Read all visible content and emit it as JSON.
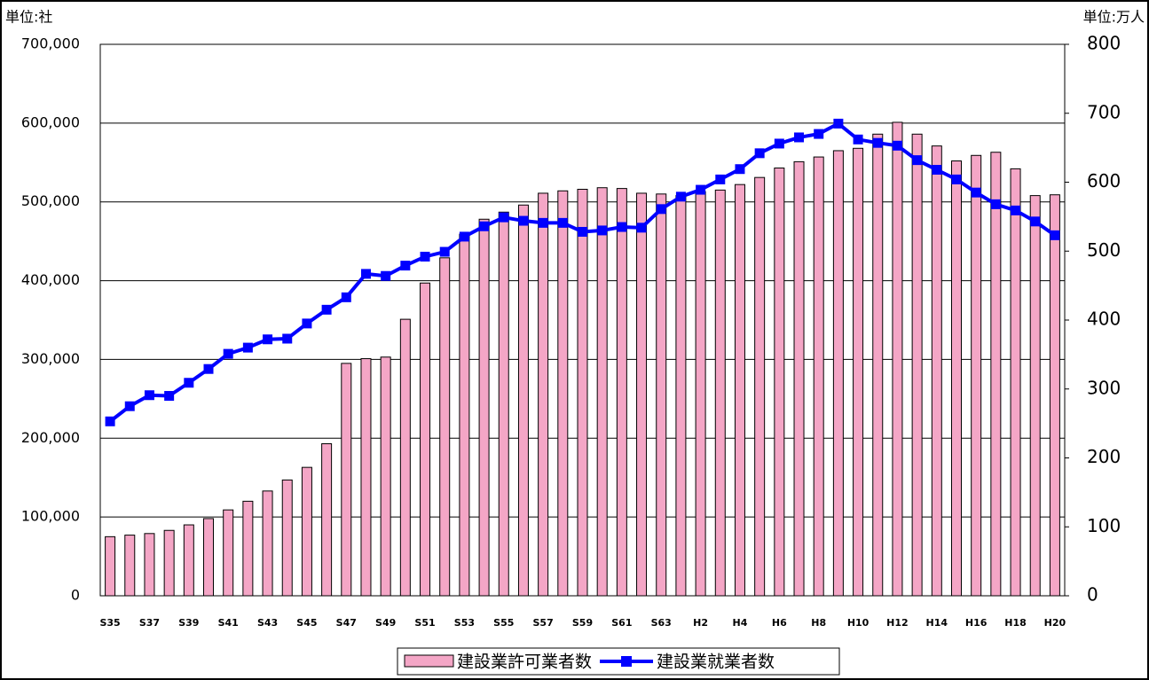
{
  "chart_data": {
    "type": "bar",
    "y_unit_label": "単位:社",
    "y2_unit_label": "単位:万人",
    "categories": [
      "S35",
      null,
      "S37",
      null,
      "S39",
      null,
      "S41",
      null,
      "S43",
      null,
      "S45",
      null,
      "S47",
      null,
      "S49",
      null,
      "S51",
      null,
      "S53",
      null,
      "S55",
      null,
      "S57",
      null,
      "S59",
      null,
      "S61",
      null,
      "S63",
      null,
      "H2",
      null,
      "H4",
      null,
      "H6",
      null,
      "H8",
      null,
      "H10",
      null,
      "H12",
      null,
      "H14",
      null,
      "H16",
      null,
      "H18",
      null,
      "H20"
    ],
    "series": [
      {
        "name": "建設業許可業者数",
        "type": "bar",
        "color": "#f4a6c6",
        "values": [
          75000,
          77000,
          79000,
          83000,
          90000,
          98000,
          109000,
          120000,
          133000,
          147000,
          163000,
          193000,
          295000,
          301000,
          303000,
          351000,
          397000,
          429000,
          459000,
          478000,
          487000,
          496000,
          511000,
          514000,
          516000,
          518000,
          517000,
          511000,
          510000,
          508000,
          513000,
          515000,
          522000,
          531000,
          543000,
          551000,
          557000,
          565000,
          568000,
          586000,
          601000,
          586000,
          571000,
          552000,
          559000,
          563000,
          542000,
          508000,
          509000
        ]
      },
      {
        "name": "建設業就業者数",
        "type": "line",
        "axis": "y2",
        "color": "#0000ff",
        "values": [
          253,
          275,
          291,
          290,
          309,
          329,
          351,
          360,
          372,
          373,
          395,
          415,
          433,
          467,
          464,
          479,
          492,
          499,
          521,
          536,
          549,
          544,
          541,
          541,
          528,
          530,
          535,
          534,
          561,
          579,
          589,
          604,
          619,
          642,
          656,
          665,
          670,
          685,
          662,
          657,
          653,
          632,
          618,
          604,
          585,
          568,
          559,
          543,
          523
        ]
      }
    ],
    "ylim": [
      0,
      700000
    ],
    "yticks": [
      0,
      {
        "value": 100000,
        "label": "100,000"
      },
      {
        "value": 200000,
        "label": "200,000"
      },
      {
        "value": 300000,
        "label": "300,000"
      },
      {
        "value": 400000,
        "label": "400,000"
      },
      {
        "value": 500000,
        "label": "500,000"
      },
      {
        "value": 600000,
        "label": "600,000"
      },
      {
        "value": 700000,
        "label": "700,000"
      }
    ],
    "y2lim": [
      0,
      800
    ],
    "y2ticks": [
      0,
      100,
      200,
      300,
      400,
      500,
      600,
      700,
      800
    ],
    "grid": true,
    "legend": "bottom"
  }
}
